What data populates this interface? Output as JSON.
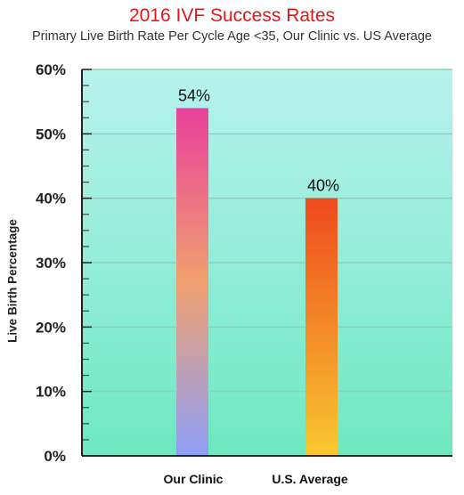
{
  "chart_data": {
    "type": "bar",
    "title": "2016 IVF Success Rates",
    "subtitle": "Primary Live Birth Rate Per Cycle Age <35, Our Clinic  vs. US Average",
    "xlabel": "",
    "ylabel": "Live Birth Percentage",
    "categories": [
      "Our Clinic",
      "U.S. Average"
    ],
    "values": [
      54,
      40
    ],
    "data_labels": [
      "54%",
      "40%"
    ],
    "ylim": [
      0,
      60
    ],
    "yticks": [
      0,
      10,
      20,
      30,
      40,
      50,
      60
    ],
    "ytick_labels": [
      "0%",
      "10%",
      "20%",
      "30%",
      "40%",
      "50%",
      "60%"
    ],
    "grid": true,
    "colors": {
      "title": "#e0191a",
      "background_top": "#b8f2ee",
      "background_bottom": "#6ee8c0",
      "bar1_top": "#e8409a",
      "bar1_mid": "#f0a070",
      "bar1_bottom": "#8f9ff8",
      "bar2_top": "#ee4a1e",
      "bar2_bottom": "#f8c830"
    }
  }
}
